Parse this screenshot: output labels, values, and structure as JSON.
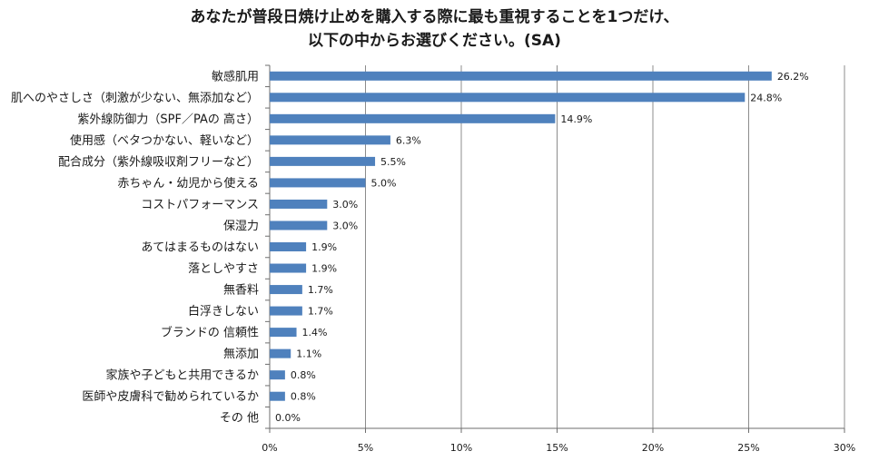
{
  "chart_data": {
    "type": "bar",
    "orientation": "horizontal",
    "title_lines": [
      "あなたが普段日焼け止めを購入する際に最も重視することを1つだけ、",
      "以下の中からお選びください。(SA)"
    ],
    "categories": [
      "敏感肌用",
      "肌へのやさしさ（刺激が少ない、無添加など）",
      "紫外線防御力（SPF／PAの 高さ）",
      "使用感（ベタつかない、軽いなど）",
      "配合成分（紫外線吸収剤フリーなど）",
      "赤ちゃん・幼児から使える",
      "コストパフォーマンス",
      "保湿力",
      "あてはまるものはない",
      "落としやすさ",
      "無香料",
      "白浮きしない",
      "ブランドの 信頼性",
      "無添加",
      "家族や子どもと共用できるか",
      "医師や皮膚科で勧められているか",
      "その 他"
    ],
    "values": [
      26.2,
      24.8,
      14.9,
      6.3,
      5.5,
      5.0,
      3.0,
      3.0,
      1.9,
      1.9,
      1.7,
      1.7,
      1.4,
      1.1,
      0.8,
      0.8,
      0.0
    ],
    "value_labels": [
      "26.2%",
      "24.8%",
      "14.9%",
      "6.3%",
      "5.5%",
      "5.0%",
      "3.0%",
      "3.0%",
      "1.9%",
      "1.9%",
      "1.7%",
      "1.7%",
      "1.4%",
      "1.1%",
      "0.8%",
      "0.8%",
      "0.0%"
    ],
    "xlim": [
      0,
      30
    ],
    "x_ticks": [
      0,
      5,
      10,
      15,
      20,
      25,
      30
    ],
    "x_tick_labels": [
      "0%",
      "5%",
      "10%",
      "15%",
      "20%",
      "25%",
      "30%"
    ],
    "grid": "vertical",
    "bar_color": "#4f81bd",
    "grid_color": "#8c8c8c"
  }
}
